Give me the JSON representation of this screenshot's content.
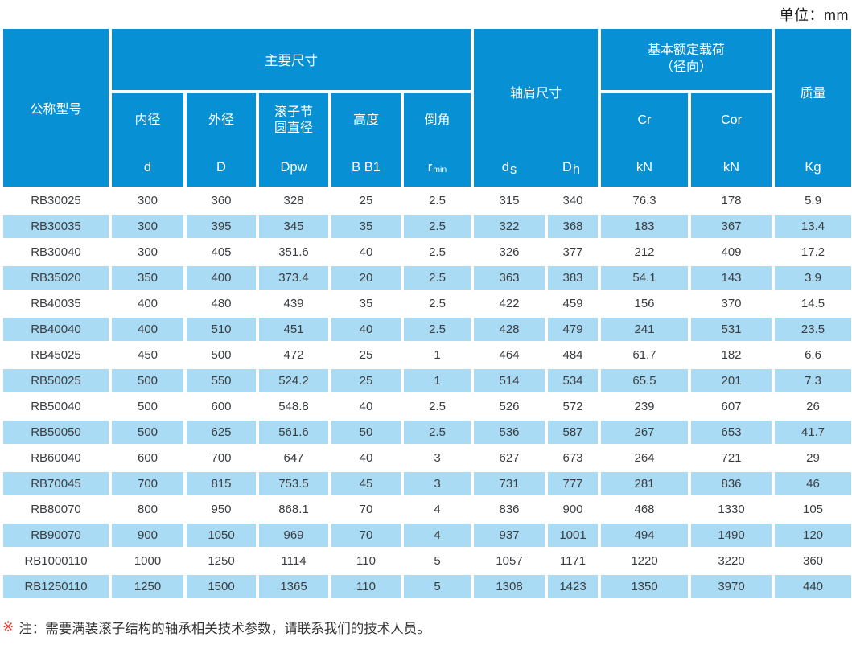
{
  "unit_label": "单位：mm",
  "header": {
    "model": "公称型号",
    "main_dims_group": "主要尺寸",
    "inner": {
      "label": "内径",
      "symbol": "d"
    },
    "outer": {
      "label": "外径",
      "symbol": "D"
    },
    "pitch": {
      "label_line1": "滚子节",
      "label_line2": "圆直径",
      "symbol": "Dpw"
    },
    "height": {
      "label": "高度",
      "symbol": "B B1"
    },
    "chamfer": {
      "label": "倒角",
      "symbol_base": "r",
      "symbol_sub": "min"
    },
    "shoulder": {
      "label": "轴肩尺寸",
      "ds_base": "d",
      "ds_sub": "s",
      "dh_base": "D",
      "dh_sub": "h"
    },
    "load": {
      "line1": "基本额定载荷",
      "line2": "（径向）",
      "cr_label": "Cr",
      "cor_label": "Cor",
      "cr_unit": "kN",
      "cor_unit": "kN"
    },
    "mass": {
      "label": "质量",
      "unit": "Kg"
    }
  },
  "table": {
    "rows": [
      [
        "RB30025",
        "300",
        "360",
        "328",
        "25",
        "2.5",
        "315",
        "340",
        "76.3",
        "178",
        "5.9"
      ],
      [
        "RB30035",
        "300",
        "395",
        "345",
        "35",
        "2.5",
        "322",
        "368",
        "183",
        "367",
        "13.4"
      ],
      [
        "RB30040",
        "300",
        "405",
        "351.6",
        "40",
        "2.5",
        "326",
        "377",
        "212",
        "409",
        "17.2"
      ],
      [
        "RB35020",
        "350",
        "400",
        "373.4",
        "20",
        "2.5",
        "363",
        "383",
        "54.1",
        "143",
        "3.9"
      ],
      [
        "RB40035",
        "400",
        "480",
        "439",
        "35",
        "2.5",
        "422",
        "459",
        "156",
        "370",
        "14.5"
      ],
      [
        "RB40040",
        "400",
        "510",
        "451",
        "40",
        "2.5",
        "428",
        "479",
        "241",
        "531",
        "23.5"
      ],
      [
        "RB45025",
        "450",
        "500",
        "472",
        "25",
        "1",
        "464",
        "484",
        "61.7",
        "182",
        "6.6"
      ],
      [
        "RB50025",
        "500",
        "550",
        "524.2",
        "25",
        "1",
        "514",
        "534",
        "65.5",
        "201",
        "7.3"
      ],
      [
        "RB50040",
        "500",
        "600",
        "548.8",
        "40",
        "2.5",
        "526",
        "572",
        "239",
        "607",
        "26"
      ],
      [
        "RB50050",
        "500",
        "625",
        "561.6",
        "50",
        "2.5",
        "536",
        "587",
        "267",
        "653",
        "41.7"
      ],
      [
        "RB60040",
        "600",
        "700",
        "647",
        "40",
        "3",
        "627",
        "673",
        "264",
        "721",
        "29"
      ],
      [
        "RB70045",
        "700",
        "815",
        "753.5",
        "45",
        "3",
        "731",
        "777",
        "281",
        "836",
        "46"
      ],
      [
        "RB80070",
        "800",
        "950",
        "868.1",
        "70",
        "4",
        "836",
        "900",
        "468",
        "1330",
        "105"
      ],
      [
        "RB90070",
        "900",
        "1050",
        "969",
        "70",
        "4",
        "937",
        "1001",
        "494",
        "1490",
        "120"
      ],
      [
        "RB1000110",
        "1000",
        "1250",
        "1114",
        "110",
        "5",
        "1057",
        "1171",
        "1220",
        "3220",
        "360"
      ],
      [
        "RB1250110",
        "1250",
        "1500",
        "1365",
        "110",
        "5",
        "1308",
        "1423",
        "1350",
        "3970",
        "440"
      ]
    ]
  },
  "note": {
    "marker": "※",
    "text": "注：需要满装滚子结构的轴承相关技术参数，请联系我们的技术人员。"
  },
  "colors": {
    "header_blue": "#0890d4",
    "row_blue": "#a9dbf4",
    "note_marker_red": "#e8392a"
  }
}
